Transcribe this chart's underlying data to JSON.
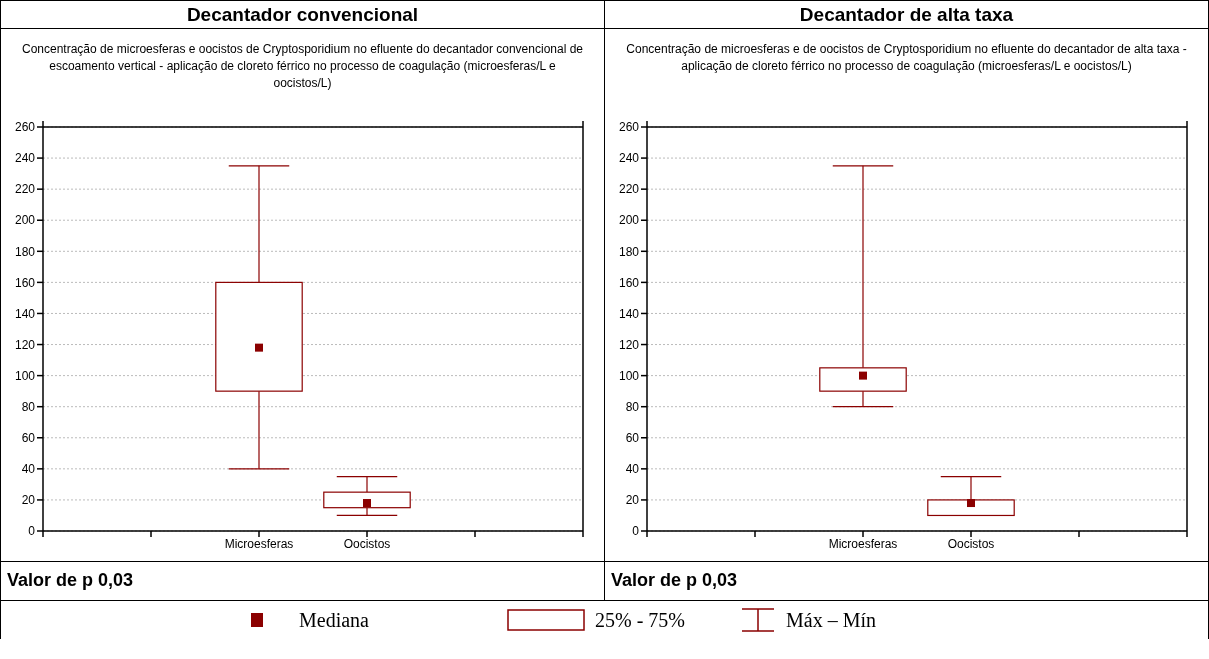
{
  "chart_data": [
    {
      "type": "box",
      "title": "Decantador convencional",
      "subtitle": "Concentração de microesferas e oocistos de Cryptosporidium no efluente do decantador convencional de escoamento vertical - aplicação de cloreto férrico no processo de coagulação (microesferas/L e oocistos/L)",
      "categories": [
        null,
        "Microesferas",
        "Oocistos",
        null
      ],
      "color": "#8b0000",
      "ylim": [
        0,
        260
      ],
      "yticks": [
        0,
        20,
        40,
        60,
        80,
        100,
        120,
        140,
        160,
        180,
        200,
        220,
        240,
        260
      ],
      "grid": "y",
      "annotations": [
        "Valor de p 0,03"
      ],
      "boxes": [
        null,
        {
          "low": 40,
          "q1": 90,
          "median": 118,
          "q3": 160,
          "high": 235
        },
        {
          "low": 10,
          "q1": 15,
          "median": 18,
          "q3": 25,
          "high": 35
        },
        null
      ]
    },
    {
      "type": "box",
      "title": "Decantador de alta taxa",
      "subtitle": "Concentração de microesferas e de oocistos de Cryptosporidium no efluente do decantador de alta taxa - aplicação de cloreto férrico no processo de coagulação (microesferas/L e oocistos/L)",
      "categories": [
        null,
        "Microesferas",
        "Oocistos",
        null
      ],
      "color": "#8b0000",
      "ylim": [
        0,
        260
      ],
      "yticks": [
        0,
        20,
        40,
        60,
        80,
        100,
        120,
        140,
        160,
        180,
        200,
        220,
        240,
        260
      ],
      "grid": "y",
      "annotations": [
        "Valor de p 0,03"
      ],
      "boxes": [
        null,
        {
          "low": 80,
          "q1": 90,
          "median": 100,
          "q3": 105,
          "high": 235
        },
        {
          "low": 10,
          "q1": 10,
          "median": 18,
          "q3": 20,
          "high": 35
        },
        null
      ]
    },
    {
      "type": "other",
      "annotations": [
        "Mediana",
        "25% - 75%",
        "Máx – Mín"
      ]
    }
  ]
}
